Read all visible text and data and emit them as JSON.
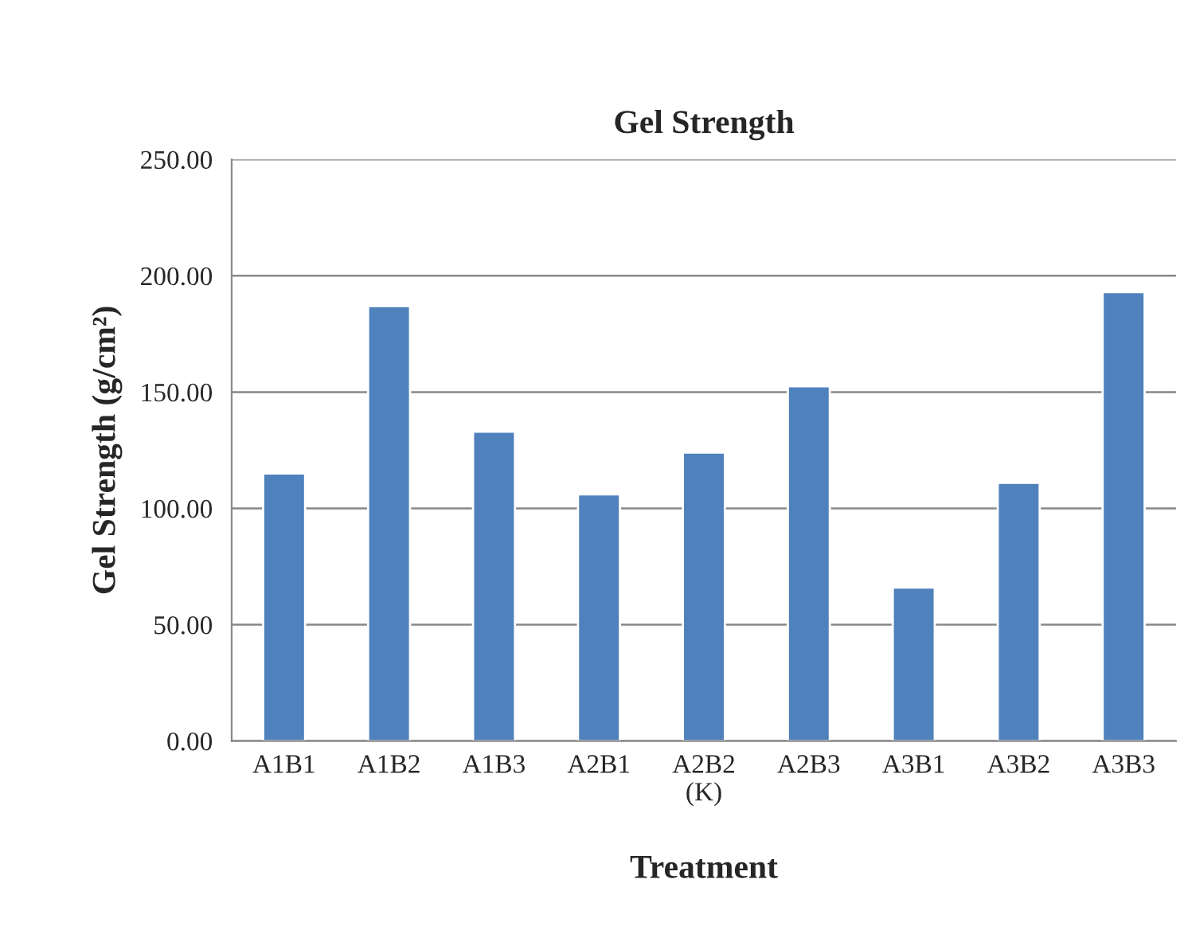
{
  "chart_data": {
    "type": "bar",
    "title": "Gel Strength",
    "xlabel": "Treatment",
    "ylabel": "Gel Strength (g/cm²)",
    "categories": [
      "A1B1",
      "A1B2",
      "A1B3",
      "A2B1",
      "A2B2\n(K)",
      "A2B3",
      "A3B1",
      "A3B2",
      "A3B3"
    ],
    "values": [
      115,
      187,
      133,
      106,
      124,
      152.5,
      66,
      111,
      193
    ],
    "color": "#4f81bd",
    "ylim": [
      0,
      250
    ],
    "yticks": [
      {
        "value": 0,
        "label": "0.00"
      },
      {
        "value": 50,
        "label": "50.00"
      },
      {
        "value": 100,
        "label": "100.00"
      },
      {
        "value": 150,
        "label": "150.00"
      },
      {
        "value": 200,
        "label": "200.00"
      },
      {
        "value": 250,
        "label": "250.00"
      }
    ],
    "grid": "y"
  }
}
